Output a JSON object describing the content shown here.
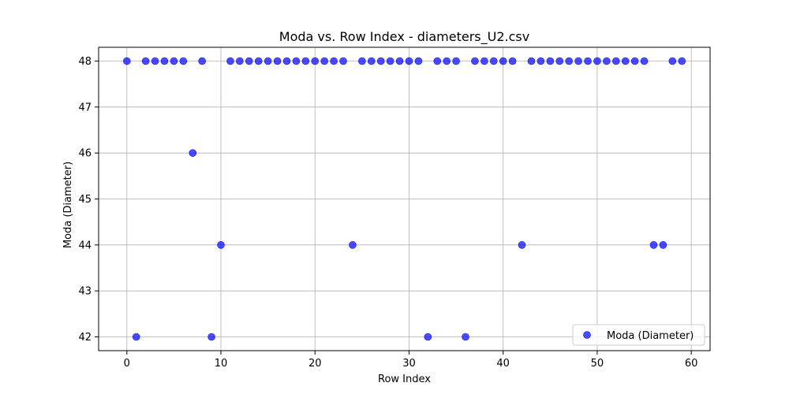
{
  "chart_data": {
    "type": "scatter",
    "title": "Moda vs. Row Index - diameters_U2.csv",
    "xlabel": "Row Index",
    "ylabel": "Moda (Diameter)",
    "xlim": [
      -3,
      62
    ],
    "ylim": [
      41.7,
      48.3
    ],
    "xticks": [
      0,
      10,
      20,
      30,
      40,
      50,
      60
    ],
    "yticks": [
      42,
      43,
      44,
      45,
      46,
      47,
      48
    ],
    "grid": true,
    "legend": "bottom-right",
    "series": [
      {
        "name": "Moda (Diameter)",
        "color": "#0000ff",
        "x": [
          0,
          1,
          2,
          3,
          4,
          5,
          6,
          7,
          8,
          9,
          10,
          11,
          12,
          13,
          14,
          15,
          16,
          17,
          18,
          19,
          20,
          21,
          22,
          23,
          24,
          25,
          26,
          27,
          28,
          29,
          30,
          31,
          32,
          33,
          34,
          35,
          36,
          37,
          38,
          39,
          40,
          41,
          42,
          43,
          44,
          45,
          46,
          47,
          48,
          49,
          50,
          51,
          52,
          53,
          54,
          55,
          56,
          57,
          58,
          59
        ],
        "y": [
          48,
          42,
          48,
          48,
          48,
          48,
          48,
          46,
          48,
          42,
          44,
          48,
          48,
          48,
          48,
          48,
          48,
          48,
          48,
          48,
          48,
          48,
          48,
          48,
          44,
          48,
          48,
          48,
          48,
          48,
          48,
          48,
          42,
          48,
          48,
          48,
          42,
          48,
          48,
          48,
          48,
          48,
          44,
          48,
          48,
          48,
          48,
          48,
          48,
          48,
          48,
          48,
          48,
          48,
          48,
          48,
          44,
          44,
          48,
          48
        ]
      }
    ]
  }
}
